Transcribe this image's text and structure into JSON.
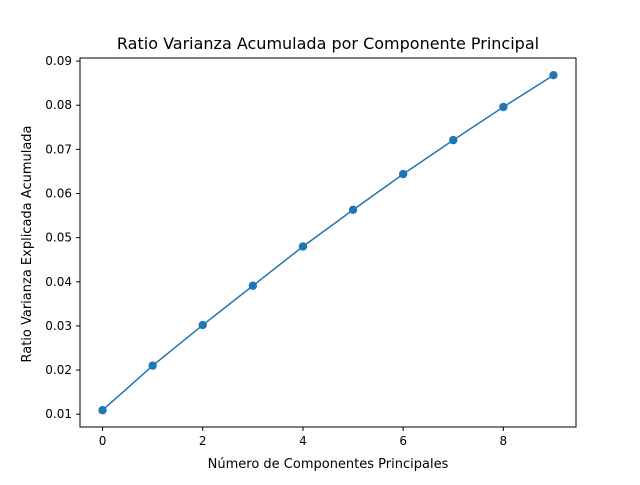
{
  "chart_data": {
    "type": "line",
    "title": "Ratio Varianza Acumulada por Componente Principal",
    "xlabel": "Número de Componentes Principales",
    "ylabel": "Ratio Varianza Explicada Acumulada",
    "x": [
      0,
      1,
      2,
      3,
      4,
      5,
      6,
      7,
      8,
      9
    ],
    "series": [
      {
        "values": [
          0.0109,
          0.021,
          0.0302,
          0.0391,
          0.048,
          0.0563,
          0.0644,
          0.0721,
          0.0796,
          0.0868
        ]
      }
    ],
    "xlim": [
      -0.45,
      9.45
    ],
    "ylim": [
      0.0071,
      0.0907
    ],
    "xticks": [
      0,
      2,
      4,
      6,
      8
    ],
    "xtick_labels": [
      "0",
      "2",
      "4",
      "6",
      "8"
    ],
    "yticks": [
      0.01,
      0.02,
      0.03,
      0.04,
      0.05,
      0.06,
      0.07,
      0.08,
      0.09
    ],
    "ytick_labels": [
      "0.01",
      "0.02",
      "0.03",
      "0.04",
      "0.05",
      "0.06",
      "0.07",
      "0.08",
      "0.09"
    ],
    "markers": true,
    "grid": false,
    "colors": {
      "series": "#1f77b4",
      "axes": "#000000",
      "background": "#ffffff"
    }
  }
}
